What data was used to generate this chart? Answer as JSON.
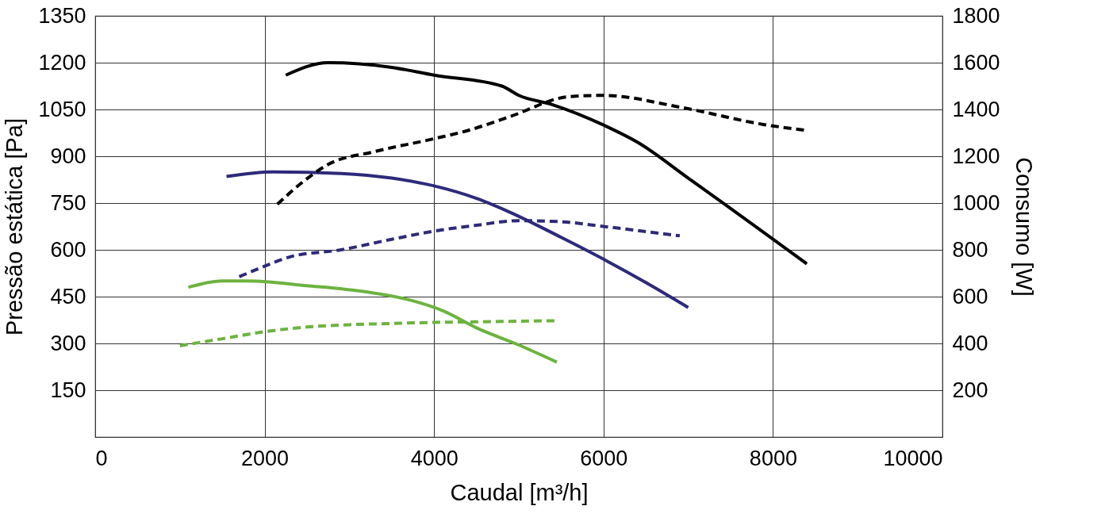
{
  "chart_data": {
    "type": "line",
    "xlabel": "Caudal [m³/h]",
    "ylabel": "Pressão estática [Pa]",
    "y2label": "Consumo [W]",
    "xlim": [
      0,
      10000
    ],
    "xticks": [
      0,
      2000,
      4000,
      6000,
      8000,
      10000
    ],
    "ylim": [
      0,
      1350
    ],
    "yticks": [
      150,
      300,
      450,
      600,
      750,
      900,
      1050,
      1200,
      1350
    ],
    "y2lim": [
      0,
      1800
    ],
    "y2ticks": [
      200,
      400,
      600,
      800,
      1000,
      1200,
      1400,
      1600,
      1800
    ],
    "grid": true,
    "legend": false,
    "series": [
      {
        "color": "#000000",
        "line_style": "solid",
        "x": [
          2250,
          2750,
          3500,
          4000,
          4800,
          5000,
          5400,
          6000,
          6400,
          7000,
          8400
        ],
        "values": [
          1160,
          1200,
          1185,
          1160,
          1125,
          1095,
          1065,
          1000,
          945,
          830,
          555
        ]
      },
      {
        "color": "#000000",
        "line_style": "dashed",
        "axis": "y2",
        "x": [
          2150,
          2450,
          2750,
          3300,
          4000,
          4400,
          4900,
          5600,
          6000,
          6900,
          7900,
          8400
        ],
        "values": [
          995,
          1090,
          1165,
          1220,
          1275,
          1310,
          1370,
          1455,
          1460,
          1410,
          1335,
          1310
        ]
      },
      {
        "color": "#2e2a7a",
        "line_style": "solid",
        "x": [
          1550,
          2100,
          2900,
          3500,
          4000,
          4500,
          4900,
          5500,
          6000,
          6500,
          7000
        ],
        "values": [
          835,
          850,
          845,
          830,
          805,
          765,
          720,
          640,
          570,
          495,
          415
        ]
      },
      {
        "color": "#2e2a7a",
        "line_style": "dashed",
        "axis": "y2",
        "x": [
          1700,
          2000,
          2300,
          2900,
          3500,
          4000,
          4500,
          5000,
          5500,
          6000,
          6900
        ],
        "values": [
          685,
          730,
          770,
          800,
          845,
          880,
          905,
          925,
          920,
          900,
          860
        ]
      },
      {
        "color": "#6db33f",
        "line_style": "solid",
        "x": [
          1100,
          1500,
          1800,
          2500,
          3200,
          3700,
          4100,
          4500,
          5000,
          5450
        ],
        "values": [
          480,
          500,
          500,
          485,
          465,
          440,
          405,
          350,
          295,
          240
        ]
      },
      {
        "color": "#6db33f",
        "line_style": "dashed",
        "axis": "y2",
        "x": [
          1000,
          1500,
          2000,
          2500,
          3000,
          3500,
          4000,
          4500,
          5000,
          5450
        ],
        "values": [
          390,
          420,
          450,
          470,
          480,
          485,
          490,
          492,
          495,
          497
        ]
      }
    ]
  }
}
